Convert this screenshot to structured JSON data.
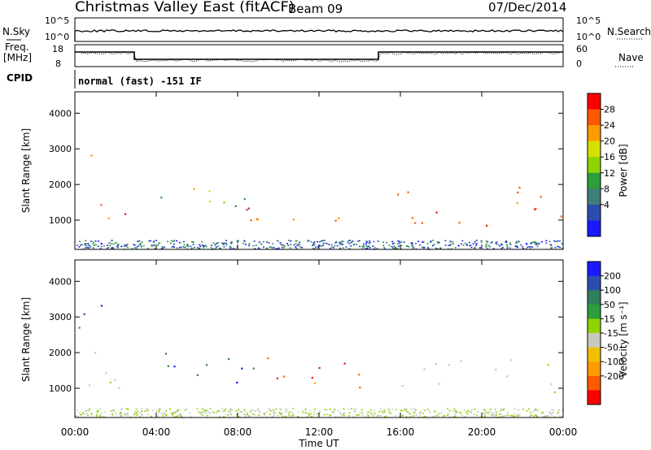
{
  "header": {
    "station": "Christmas Valley East (fitACF)",
    "beam": "Beam 09",
    "date": "07/Dec/2014"
  },
  "strip": {
    "nsky_label": "N.Sky",
    "nsky_ticks": [
      "10^5",
      "10^0"
    ],
    "nsearch_label": "N.Search",
    "nsearch_ticks": [
      "10^5",
      "10^0"
    ],
    "freq_label_1": "Freq.",
    "freq_label_2": "[MHz]",
    "freq_ticks": [
      "18",
      "8"
    ],
    "nave_label": "Nave",
    "nave_ticks": [
      "60",
      "0"
    ],
    "cpid_label": "CPID",
    "cpid_value": "normal (fast) -151 IF"
  },
  "power_colorbar": {
    "title": "Power [dB]",
    "ticks": [
      "28",
      "24",
      "20",
      "16",
      "12",
      "8",
      "4"
    ],
    "colors": [
      "#ff0000",
      "#ff5a00",
      "#ff9b00",
      "#d6e000",
      "#8fd400",
      "#2e9e3c",
      "#3f7f7a",
      "#2c4db0",
      "#1a1aff"
    ]
  },
  "velocity_colorbar": {
    "title": "Velocity [m s⁻¹]",
    "ticks": [
      "200",
      "100",
      "50",
      "15",
      "-15",
      "-50",
      "-100",
      "-200"
    ],
    "colors": [
      "#1a1aff",
      "#2c4db0",
      "#2f7f5e",
      "#2e9e3c",
      "#8fd400",
      "#c8c8be",
      "#f0c000",
      "#ff9b00",
      "#ff5a00",
      "#ff0000"
    ]
  },
  "chart_data": [
    {
      "type": "heatmap",
      "panel": "power",
      "ylabel": "Slant Range [km]",
      "ylim": [
        180,
        4600
      ],
      "yticks": [
        "4000",
        "3000",
        "2000",
        "1000"
      ],
      "xlim": [
        "00:00",
        "24:00"
      ],
      "regions": [
        {
          "t": [
            0.0,
            3.0
          ],
          "r": [
            900,
            1700
          ],
          "level": "high"
        },
        {
          "t": [
            0.5,
            1.5
          ],
          "r": [
            2500,
            3100
          ],
          "level": "high"
        },
        {
          "t": [
            3.0,
            9.0
          ],
          "r": [
            1300,
            2200
          ],
          "level": "medium"
        },
        {
          "t": [
            8.0,
            14.5
          ],
          "r": [
            800,
            1600
          ],
          "level": "high"
        },
        {
          "t": [
            15.3,
            24.0
          ],
          "r": [
            800,
            2000
          ],
          "level": "high"
        }
      ]
    },
    {
      "type": "heatmap",
      "panel": "velocity",
      "xlabel": "Time UT",
      "ylabel": "Slant Range [km]",
      "ylim": [
        180,
        4600
      ],
      "yticks": [
        "4000",
        "3000",
        "2000",
        "1000"
      ],
      "xticks": [
        "00:00",
        "04:00",
        "08:00",
        "12:00",
        "16:00",
        "20:00",
        "00:00"
      ],
      "xlim": [
        "00:00",
        "24:00"
      ],
      "regions": [
        {
          "t": [
            0.0,
            3.0
          ],
          "r": [
            800,
            2300
          ],
          "velocity": "~0"
        },
        {
          "t": [
            0.0,
            2.8
          ],
          "r": [
            2700,
            3500
          ],
          "velocity": "positive"
        },
        {
          "t": [
            4.0,
            9.5
          ],
          "r": [
            1000,
            2100
          ],
          "velocity": "positive"
        },
        {
          "t": [
            9.0,
            14.5
          ],
          "r": [
            800,
            2000
          ],
          "velocity": "negative"
        },
        {
          "t": [
            15.3,
            24.0
          ],
          "r": [
            900,
            1900
          ],
          "velocity": "~0"
        }
      ]
    }
  ]
}
